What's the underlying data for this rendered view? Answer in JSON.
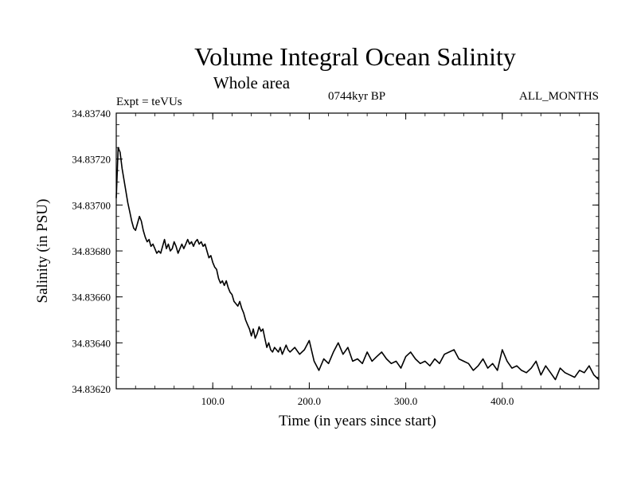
{
  "chart_data": {
    "type": "line",
    "title": "Volume Integral Ocean Salinity",
    "subtitle": "Whole area",
    "annotations": {
      "left": "Expt = teVUs",
      "center": "0744kyr BP",
      "right": "ALL_MONTHS"
    },
    "xlabel": "Time (in years since start)",
    "ylabel": "Salinity (in PSU)",
    "xlim": [
      0,
      500
    ],
    "ylim": [
      34.8362,
      34.8374
    ],
    "x_ticks": [
      100,
      200,
      300,
      400
    ],
    "x_tick_labels": [
      "100.0",
      "200.0",
      "300.0",
      "400.0"
    ],
    "y_ticks": [
      34.8362,
      34.8364,
      34.8366,
      34.8368,
      34.837,
      34.8372,
      34.8374
    ],
    "y_tick_labels": [
      "34.83620",
      "34.83640",
      "34.83660",
      "34.83680",
      "34.83700",
      "34.83720",
      "34.83740"
    ],
    "series": [
      {
        "name": "Salinity",
        "color": "#000000",
        "x": [
          0,
          2,
          4,
          6,
          8,
          10,
          12,
          14,
          16,
          18,
          20,
          22,
          24,
          26,
          28,
          30,
          32,
          34,
          36,
          38,
          40,
          42,
          44,
          46,
          48,
          50,
          52,
          54,
          56,
          58,
          60,
          62,
          64,
          66,
          68,
          70,
          72,
          74,
          76,
          78,
          80,
          82,
          84,
          86,
          88,
          90,
          92,
          94,
          96,
          98,
          100,
          102,
          104,
          106,
          108,
          110,
          112,
          114,
          116,
          118,
          120,
          122,
          124,
          126,
          128,
          130,
          132,
          134,
          136,
          138,
          140,
          142,
          144,
          146,
          148,
          150,
          152,
          154,
          156,
          158,
          160,
          162,
          164,
          166,
          168,
          170,
          172,
          174,
          176,
          178,
          180,
          185,
          190,
          195,
          200,
          205,
          210,
          215,
          220,
          225,
          230,
          235,
          240,
          245,
          250,
          255,
          260,
          265,
          270,
          275,
          280,
          285,
          290,
          295,
          300,
          305,
          310,
          315,
          320,
          325,
          330,
          335,
          340,
          345,
          350,
          355,
          360,
          365,
          370,
          375,
          380,
          385,
          390,
          395,
          400,
          405,
          410,
          415,
          420,
          425,
          430,
          435,
          440,
          445,
          450,
          455,
          460,
          465,
          470,
          475,
          480,
          485,
          490,
          495,
          500
        ],
        "values": [
          34.83703,
          34.83725,
          34.83723,
          34.83716,
          34.83711,
          34.83706,
          34.83701,
          34.83697,
          34.83693,
          34.8369,
          34.83689,
          34.83692,
          34.83695,
          34.83693,
          34.83689,
          34.83686,
          34.83684,
          34.83685,
          34.83682,
          34.83683,
          34.83681,
          34.83679,
          34.8368,
          34.83679,
          34.83682,
          34.83685,
          34.83681,
          34.83683,
          34.8368,
          34.83681,
          34.83684,
          34.83682,
          34.83679,
          34.83681,
          34.83683,
          34.83681,
          34.83683,
          34.83685,
          34.83683,
          34.83684,
          34.83682,
          34.83684,
          34.83685,
          34.83683,
          34.83684,
          34.83682,
          34.83683,
          34.8368,
          34.83677,
          34.83678,
          34.83675,
          34.83673,
          34.83672,
          34.83668,
          34.83666,
          34.83667,
          34.83665,
          34.83667,
          34.83664,
          34.83662,
          34.83661,
          34.83658,
          34.83657,
          34.83656,
          34.83658,
          34.83655,
          34.83653,
          34.8365,
          34.83648,
          34.83646,
          34.83643,
          34.83646,
          34.83642,
          34.83644,
          34.83647,
          34.83645,
          34.83646,
          34.83642,
          34.83638,
          34.8364,
          34.83637,
          34.83636,
          34.83638,
          34.83637,
          34.83636,
          34.83638,
          34.83635,
          34.83637,
          34.83639,
          34.83637,
          34.83636,
          34.83638,
          34.83635,
          34.83637,
          34.83641,
          34.83632,
          34.83628,
          34.83633,
          34.83631,
          34.83636,
          34.8364,
          34.83635,
          34.83638,
          34.83632,
          34.83633,
          34.83631,
          34.83636,
          34.83632,
          34.83634,
          34.83636,
          34.83633,
          34.83631,
          34.83632,
          34.83629,
          34.83634,
          34.83636,
          34.83633,
          34.83631,
          34.83632,
          34.8363,
          34.83633,
          34.83631,
          34.83635,
          34.83636,
          34.83637,
          34.83633,
          34.83632,
          34.83631,
          34.83628,
          34.8363,
          34.83633,
          34.83629,
          34.83631,
          34.83628,
          34.83637,
          34.83632,
          34.83629,
          34.8363,
          34.83628,
          34.83627,
          34.83629,
          34.83632,
          34.83626,
          34.8363,
          34.83627,
          34.83624,
          34.83629,
          34.83627,
          34.83626,
          34.83625,
          34.83628,
          34.83627,
          34.8363,
          34.83626,
          34.83624
        ]
      }
    ]
  }
}
